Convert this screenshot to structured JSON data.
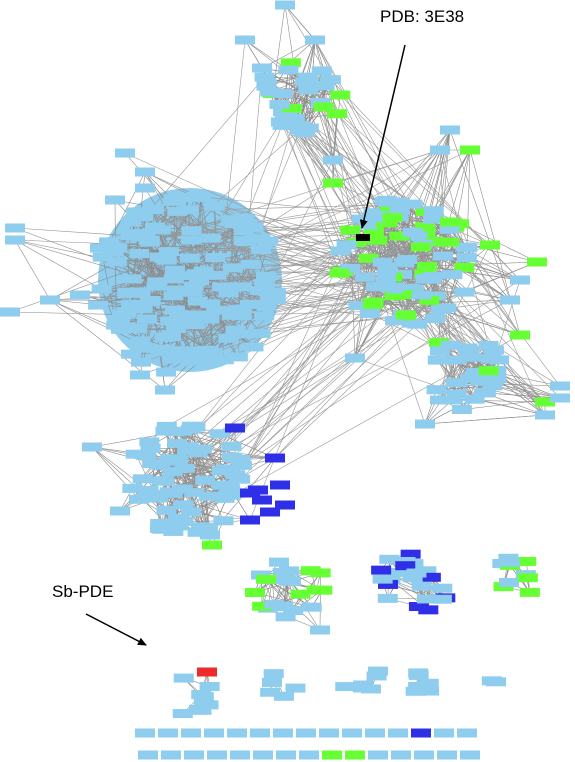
{
  "annotations": [
    {
      "label": "PDB: 3E38"
    },
    {
      "label": "Sb-PDE"
    }
  ]
}
